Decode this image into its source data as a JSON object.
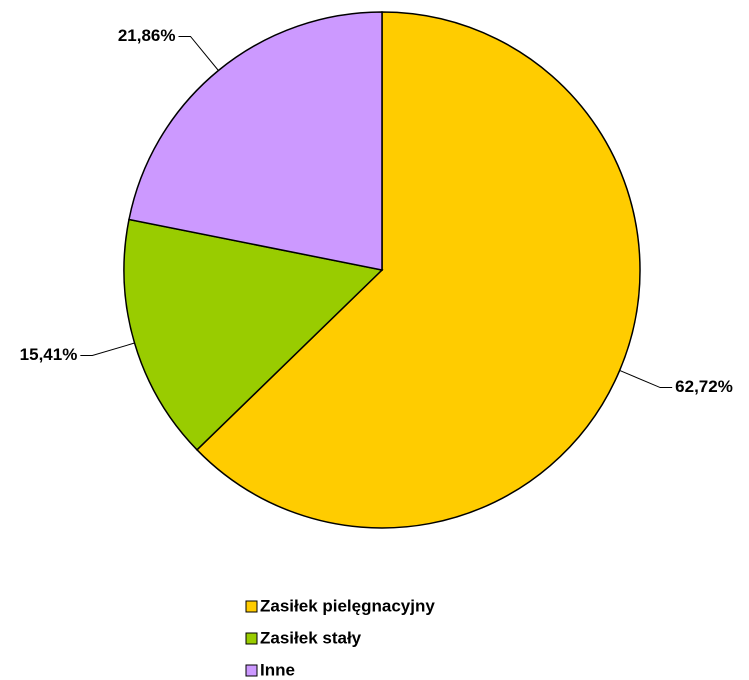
{
  "chart_data": {
    "type": "pie",
    "categories": [
      "Zasiłek pielęgnacyjny",
      "Zasiłek stały",
      "Inne"
    ],
    "values": [
      62.72,
      15.41,
      21.86
    ],
    "value_labels": [
      "62,72%",
      "15,41%",
      "21,86%"
    ],
    "colors": [
      "#FFCC00",
      "#99CC00",
      "#CC99FF"
    ]
  }
}
